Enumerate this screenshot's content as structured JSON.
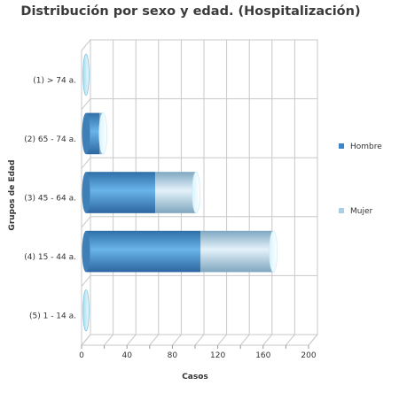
{
  "chart_data": {
    "type": "bar",
    "orientation": "horizontal",
    "stacked": true,
    "style": "3d-cylinder",
    "title": "Distribución por sexo y edad. (Hospitalización)",
    "xlabel": "Casos",
    "ylabel": "Grupos de Edad",
    "xlim": [
      0,
      200
    ],
    "xticks": [
      0,
      40,
      80,
      120,
      160,
      200
    ],
    "grid": true,
    "legend_position": "right",
    "categories": [
      "(1) > 74 a.",
      "(2) 65 - 74 a.",
      "(3) 45 - 64 a.",
      "(4) 15 - 44 a.",
      "(5) 1 - 14 a."
    ],
    "series": [
      {
        "name": "Hombre",
        "color": "#3d85c6",
        "values": [
          0,
          12,
          61,
          101,
          0
        ]
      },
      {
        "name": "Mujer",
        "color": "#a9cfe6",
        "values": [
          0,
          3,
          36,
          64,
          0
        ]
      }
    ]
  }
}
